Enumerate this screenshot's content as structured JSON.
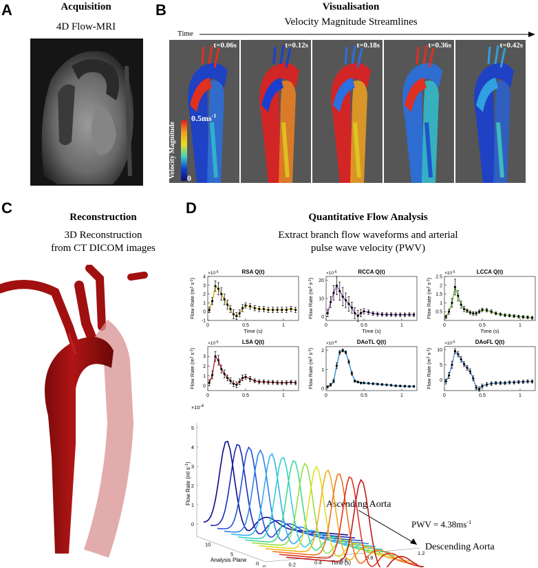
{
  "panels": {
    "A": {
      "letter": "A",
      "title": "Acquisition",
      "subtitle": "4D Flow-MRI"
    },
    "B": {
      "letter": "B",
      "title": "Visualisation",
      "subtitle": "Velocity Magnitude Streamlines",
      "time_label": "Time",
      "frames": [
        "t=0.06s",
        "t=0.12s",
        "t=0.18s",
        "t=0.36s",
        "t=0.42s"
      ],
      "colorbar": {
        "label": "Velocity Magnitude",
        "max": "0.5ms",
        "max_sup": "-1",
        "min": "0"
      }
    },
    "C": {
      "letter": "C",
      "title": "Reconstruction",
      "subtitle_lines": [
        "3D Reconstruction",
        "from CT DICOM images"
      ]
    },
    "D": {
      "letter": "D",
      "title": "Quantitative Flow Analysis",
      "subtitle_lines": [
        "Extract branch flow waveforms and arterial",
        "pulse wave velocity (PWV)"
      ]
    }
  },
  "plots_common": {
    "xlabel": "Time (s)",
    "ylabel": "Flow Rate (m",
    "ylabel_unit": "3",
    "ylabel_tail": " s",
    "ylabel_tail_sup": "-1",
    "ylabel_close": ")"
  },
  "waterfall": {
    "ylabel": "Flow Rate (ml s",
    "ylabel_sup": "-1",
    "ylabel_close": ")",
    "xlabel": "Time (s)",
    "zlabel": "Analysis Plane",
    "exponent": "×10",
    "exponent_sup": "-4",
    "ascending": "Ascending Aorta",
    "descending": "Descending Aorta",
    "pwv": "PWV = 4.38ms",
    "pwv_sup": "-1",
    "y_ticks": [
      "0",
      "1",
      "2",
      "3",
      "4",
      "5"
    ],
    "x_ticks": [
      "0",
      "0.2",
      "0.4",
      "0.6",
      "0.8",
      "1",
      "1.2"
    ],
    "z_ticks": [
      "10",
      "5",
      "0"
    ]
  },
  "chart_data": [
    {
      "type": "line",
      "title": "RSA Q(t)",
      "color": "#d9b31a",
      "ylim": [
        -1,
        4
      ],
      "xlim": [
        0,
        1.2
      ],
      "exponent": "-5",
      "y_ticks": [
        -1,
        0,
        1,
        2,
        3,
        4
      ],
      "x_ticks": [
        0,
        0.5,
        1
      ],
      "x": [
        0.02,
        0.06,
        0.1,
        0.14,
        0.18,
        0.22,
        0.26,
        0.3,
        0.34,
        0.38,
        0.42,
        0.46,
        0.5,
        0.56,
        0.62,
        0.68,
        0.74,
        0.8,
        0.86,
        0.92,
        0.98,
        1.04,
        1.1,
        1.16
      ],
      "values": [
        0.2,
        1.2,
        2.9,
        2.6,
        2.0,
        1.4,
        0.8,
        0.3,
        -0.3,
        -0.5,
        -0.2,
        0.4,
        0.7,
        0.6,
        0.4,
        0.3,
        0.3,
        0.2,
        0.2,
        0.2,
        0.2,
        0.2,
        0.3,
        0.2
      ],
      "err": [
        0.3,
        0.4,
        0.6,
        0.7,
        0.7,
        0.6,
        0.5,
        0.4,
        0.5,
        0.4,
        0.4,
        0.4,
        0.3,
        0.3,
        0.3,
        0.3,
        0.3,
        0.3,
        0.3,
        0.3,
        0.3,
        0.3,
        0.3,
        0.3
      ]
    },
    {
      "type": "line",
      "title": "RCCA Q(t)",
      "color": "#9b59c6",
      "ylim": [
        -2,
        22
      ],
      "xlim": [
        0,
        1.2
      ],
      "exponent": "-6",
      "y_ticks": [
        0,
        10,
        20
      ],
      "x_ticks": [
        0,
        0.5,
        1
      ],
      "x": [
        0.02,
        0.06,
        0.1,
        0.14,
        0.18,
        0.22,
        0.26,
        0.3,
        0.34,
        0.38,
        0.42,
        0.46,
        0.5,
        0.56,
        0.62,
        0.68,
        0.74,
        0.8,
        0.86,
        0.92,
        0.98,
        1.04,
        1.1,
        1.16
      ],
      "values": [
        2,
        8,
        13,
        17,
        14,
        11,
        9,
        7,
        5,
        2,
        0.5,
        2,
        3,
        2.5,
        1.8,
        1.5,
        1.3,
        1.2,
        1.2,
        1.1,
        1.1,
        1.1,
        1.2,
        1.1
      ],
      "err": [
        2,
        3,
        4,
        5,
        5,
        5,
        4,
        4,
        3,
        3,
        3,
        2,
        1.5,
        1.2,
        1,
        1,
        1,
        1,
        1,
        1,
        1,
        1,
        1,
        1
      ]
    },
    {
      "type": "line",
      "title": "LCCA Q(t)",
      "color": "#6dbf3a",
      "ylim": [
        0,
        2.5
      ],
      "xlim": [
        0,
        1.2
      ],
      "exponent": "-5",
      "y_ticks": [
        0.5,
        1,
        1.5,
        2,
        2.5
      ],
      "x_ticks": [
        0,
        0.5,
        1
      ],
      "x": [
        0.02,
        0.06,
        0.1,
        0.14,
        0.18,
        0.22,
        0.26,
        0.3,
        0.34,
        0.38,
        0.42,
        0.46,
        0.5,
        0.56,
        0.62,
        0.68,
        0.74,
        0.8,
        0.86,
        0.92,
        0.98,
        1.04,
        1.1,
        1.16
      ],
      "values": [
        0.2,
        0.5,
        1.0,
        1.9,
        1.4,
        0.9,
        0.65,
        0.55,
        0.45,
        0.4,
        0.4,
        0.5,
        0.6,
        0.58,
        0.5,
        0.4,
        0.35,
        0.3,
        0.28,
        0.25,
        0.22,
        0.2,
        0.18,
        0.15
      ],
      "err": [
        0.1,
        0.15,
        0.25,
        0.45,
        0.3,
        0.2,
        0.15,
        0.1,
        0.1,
        0.1,
        0.1,
        0.1,
        0.1,
        0.1,
        0.1,
        0.08,
        0.08,
        0.08,
        0.08,
        0.08,
        0.08,
        0.08,
        0.08,
        0.08
      ]
    },
    {
      "type": "line",
      "title": "LSA Q(t)",
      "color": "#c0242a",
      "ylim": [
        -0.5,
        4
      ],
      "xlim": [
        0,
        1.2
      ],
      "exponent": "-5",
      "y_ticks": [
        0,
        1,
        2,
        3
      ],
      "x_ticks": [
        0,
        0.5,
        1
      ],
      "x": [
        0.02,
        0.06,
        0.1,
        0.14,
        0.18,
        0.22,
        0.26,
        0.3,
        0.34,
        0.38,
        0.42,
        0.46,
        0.5,
        0.56,
        0.62,
        0.68,
        0.74,
        0.8,
        0.86,
        0.92,
        0.98,
        1.04,
        1.1,
        1.16
      ],
      "values": [
        0.3,
        1.1,
        3.0,
        2.6,
        1.7,
        1.2,
        0.8,
        0.5,
        0.2,
        0.1,
        0.4,
        0.8,
        0.9,
        0.7,
        0.5,
        0.4,
        0.4,
        0.35,
        0.35,
        0.3,
        0.3,
        0.3,
        0.35,
        0.3
      ],
      "err": [
        0.3,
        0.4,
        0.5,
        0.5,
        0.4,
        0.4,
        0.3,
        0.3,
        0.3,
        0.3,
        0.3,
        0.3,
        0.25,
        0.25,
        0.2,
        0.2,
        0.2,
        0.2,
        0.2,
        0.2,
        0.2,
        0.2,
        0.2,
        0.2
      ]
    },
    {
      "type": "line",
      "title": "DAoTL Q(t)",
      "color": "#2a8fd0",
      "ylim": [
        -0.1,
        2.2
      ],
      "xlim": [
        0,
        1.2
      ],
      "exponent": "-4",
      "y_ticks": [
        0,
        1,
        2
      ],
      "x_ticks": [
        0,
        0.5,
        1
      ],
      "x": [
        0.02,
        0.06,
        0.1,
        0.14,
        0.18,
        0.22,
        0.26,
        0.3,
        0.34,
        0.38,
        0.42,
        0.46,
        0.5,
        0.56,
        0.62,
        0.68,
        0.74,
        0.8,
        0.86,
        0.92,
        0.98,
        1.04,
        1.1,
        1.16
      ],
      "values": [
        0.1,
        0.2,
        0.4,
        1.2,
        1.9,
        2.0,
        1.9,
        1.4,
        0.8,
        0.4,
        0.35,
        0.3,
        0.3,
        0.28,
        0.26,
        0.24,
        0.22,
        0.2,
        0.18,
        0.15,
        0.14,
        0.13,
        0.12,
        0.12
      ],
      "err": [
        0.05,
        0.08,
        0.1,
        0.15,
        0.1,
        0.08,
        0.08,
        0.1,
        0.1,
        0.06,
        0.05,
        0.05,
        0.05,
        0.05,
        0.05,
        0.05,
        0.05,
        0.05,
        0.05,
        0.05,
        0.05,
        0.05,
        0.05,
        0.05
      ]
    },
    {
      "type": "line",
      "title": "DAoFL Q(t)",
      "color": "#4a8ede",
      "ylim": [
        -3.5,
        11
      ],
      "xlim": [
        0,
        1.2
      ],
      "exponent": "-5",
      "y_ticks": [
        0,
        5,
        10
      ],
      "x_ticks": [
        0,
        0.5,
        1
      ],
      "x": [
        0.02,
        0.06,
        0.1,
        0.14,
        0.18,
        0.22,
        0.26,
        0.3,
        0.34,
        0.38,
        0.42,
        0.46,
        0.5,
        0.56,
        0.62,
        0.68,
        0.74,
        0.8,
        0.86,
        0.92,
        0.98,
        1.04,
        1.1,
        1.16
      ],
      "values": [
        -0.5,
        1.5,
        5,
        9.5,
        8.5,
        6.8,
        5.2,
        4,
        2.8,
        0.5,
        -2.5,
        -3,
        -2,
        -1.5,
        -1.2,
        -1.0,
        -1.0,
        -1.0,
        -0.8,
        -0.8,
        -0.7,
        -0.6,
        -0.5,
        -0.5
      ],
      "err": [
        0.8,
        1,
        1.2,
        0.8,
        0.9,
        0.9,
        0.8,
        0.8,
        0.8,
        0.8,
        0.7,
        0.7,
        0.6,
        0.6,
        0.6,
        0.5,
        0.5,
        0.5,
        0.5,
        0.5,
        0.5,
        0.5,
        0.5,
        0.5
      ]
    }
  ]
}
